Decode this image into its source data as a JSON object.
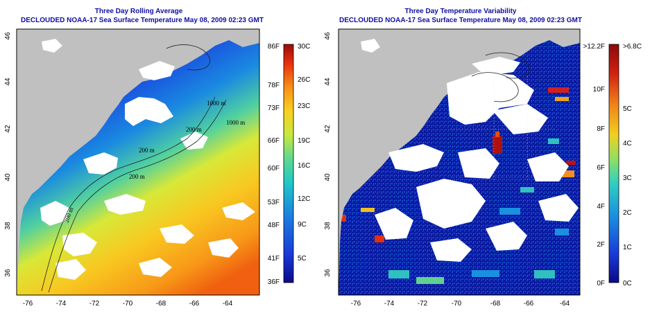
{
  "panels": [
    {
      "title": "Three Day Rolling Average",
      "subtitle": "DECLOUDED NOAA-17 Sea Surface Temperature May 08, 2009 02:23 GMT",
      "colorbar_left": [
        "86F",
        "78F",
        "73F",
        "66F",
        "60F",
        "53F",
        "48F",
        "41F",
        "36F"
      ],
      "colorbar_right": [
        "30C",
        "26C",
        "23C",
        "19C",
        "16C",
        "12C",
        "9C",
        "5C"
      ]
    },
    {
      "title": "Three Day Temperature Variability",
      "subtitle": "DECLOUDED NOAA-17 Sea Surface Temperature May 08, 2009 02:23 GMT",
      "colorbar_left": [
        ">12.2F",
        "10F",
        "8F",
        "6F",
        "4F",
        "2F",
        "0F"
      ],
      "colorbar_right": [
        ">6.8C",
        "5C",
        "4C",
        "3C",
        "2C",
        "1C",
        "0C"
      ]
    }
  ],
  "axes": {
    "lon_labels": [
      "-76",
      "-74",
      "-72",
      "-70",
      "-68",
      "-66",
      "-64"
    ],
    "lat_labels": [
      "46",
      "44",
      "42",
      "40",
      "38",
      "36"
    ]
  },
  "isobaths": [
    "200 m",
    "200 m",
    "1000 m",
    "200 m",
    "1000 m",
    "200 m"
  ],
  "colors": {
    "land": "#c0c0c0",
    "cloud": "#ffffff",
    "title": "#1010a0",
    "sst_scale": [
      "#0a0a8a",
      "#1a3ad8",
      "#1a80e0",
      "#20c8c8",
      "#60d890",
      "#c8e840",
      "#f8d020",
      "#f89018",
      "#e83010",
      "#9a0a0a"
    ],
    "var_scale": [
      "#0a0a8a",
      "#1a3ad8",
      "#1a90e0",
      "#30d0c0",
      "#90e060",
      "#f0d020",
      "#f08018",
      "#d02010",
      "#8a0a0a"
    ]
  }
}
